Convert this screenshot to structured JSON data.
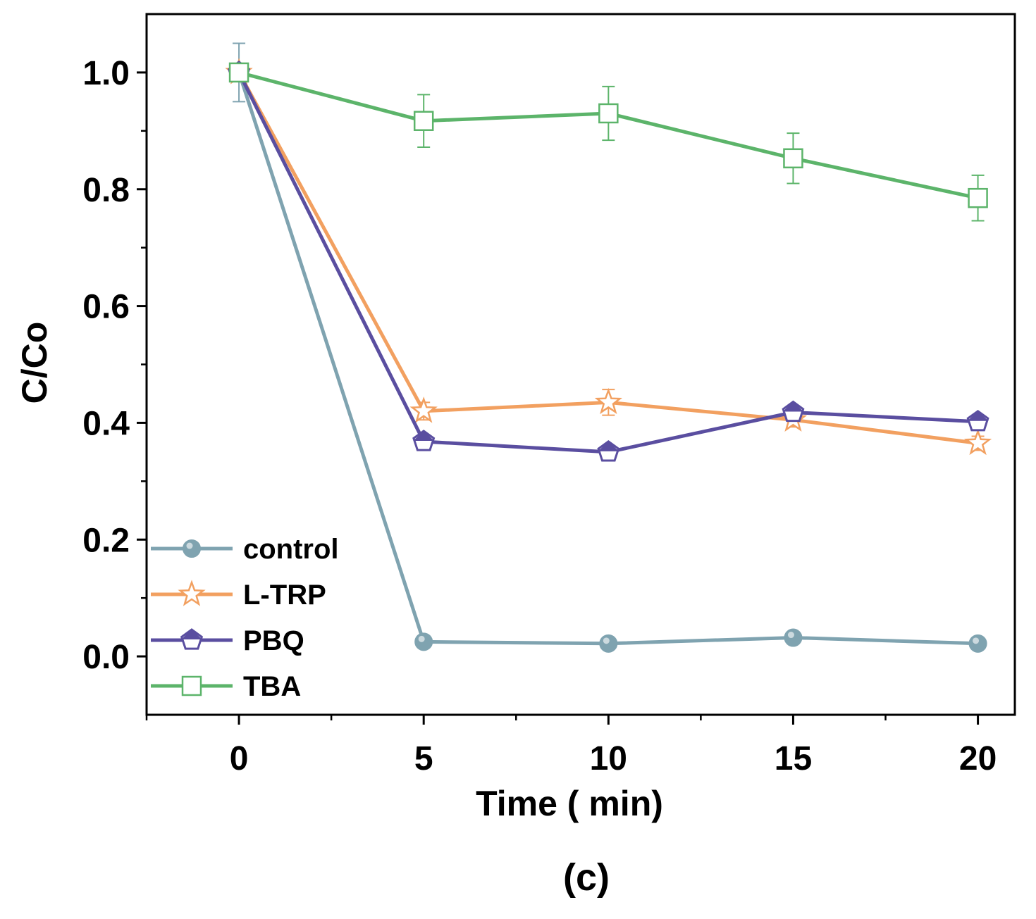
{
  "chart_data": {
    "type": "line",
    "panel_label": "(c)",
    "xlabel": "Time ( min)",
    "ylabel": "C/Co",
    "xlim": [
      -2.5,
      21
    ],
    "ylim": [
      -0.1,
      1.1
    ],
    "x_ticks": [
      0,
      5,
      10,
      15,
      20
    ],
    "x_tick_labels": [
      "0",
      "5",
      "10",
      "15",
      "20"
    ],
    "y_ticks": [
      0.0,
      0.2,
      0.4,
      0.6,
      0.8,
      1.0
    ],
    "y_tick_labels": [
      "0.0",
      "0.2",
      "0.4",
      "0.6",
      "0.8",
      "1.0"
    ],
    "grid": false,
    "legend_position": "bottom-left",
    "x": [
      0,
      5,
      10,
      15,
      20
    ],
    "series": [
      {
        "name": "control",
        "values": [
          1.0,
          0.025,
          0.022,
          0.032,
          0.022
        ],
        "errors": [
          0.05,
          0.0,
          0.0,
          0.0,
          0.0
        ],
        "color": "#7fa3b0",
        "marker": "circle"
      },
      {
        "name": "L-TRP",
        "values": [
          1.0,
          0.42,
          0.435,
          0.405,
          0.365
        ],
        "errors": [
          0.0,
          0.015,
          0.022,
          0.012,
          0.012
        ],
        "color": "#f2a060",
        "marker": "star"
      },
      {
        "name": "PBQ",
        "values": [
          1.0,
          0.368,
          0.35,
          0.418,
          0.402
        ],
        "errors": [
          0.0,
          0.0,
          0.0,
          0.0,
          0.0
        ],
        "color": "#5a4ea0",
        "marker": "pentagon"
      },
      {
        "name": "TBA",
        "values": [
          1.0,
          0.917,
          0.93,
          0.853,
          0.785
        ],
        "errors": [
          0.0,
          0.045,
          0.046,
          0.043,
          0.039
        ],
        "color": "#5cb46a",
        "marker": "square"
      }
    ]
  }
}
